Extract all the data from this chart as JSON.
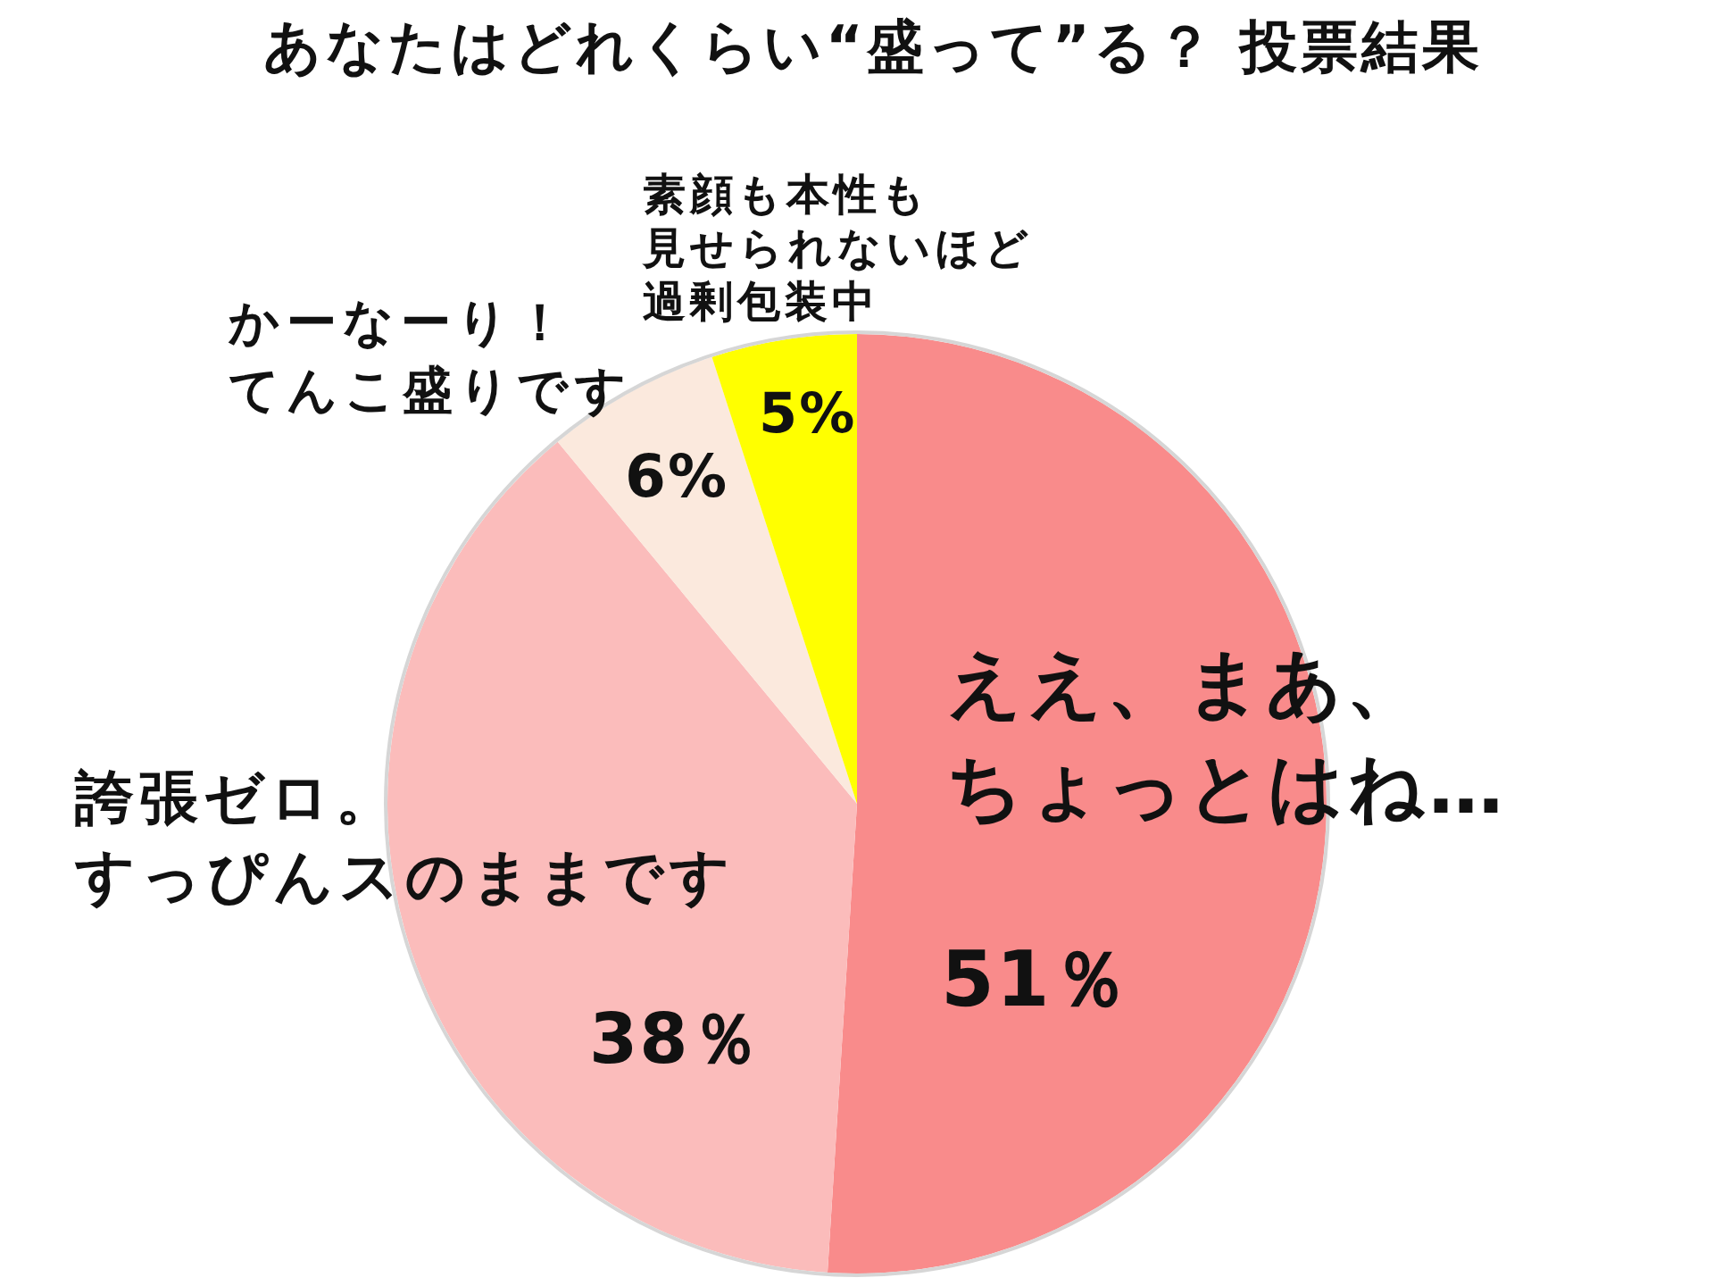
{
  "chart_data": {
    "type": "pie",
    "title": "あなたはどれくらい“盛って”る？ 投票結果",
    "categories": [
      "ええ、まあ、ちょっとはね…",
      "誇張ゼロ。すっぴんスのままです",
      "かーなーり！てんこ盛りです",
      "素顔も本性も見せられないほど過剰包装中"
    ],
    "values": [
      51,
      38,
      6,
      5
    ],
    "colors": [
      "#f98b8b",
      "#fbbcbb",
      "#fbe9dd",
      "#ffff00"
    ],
    "value_labels": [
      "51％",
      "38％",
      "6%",
      "5%"
    ]
  }
}
